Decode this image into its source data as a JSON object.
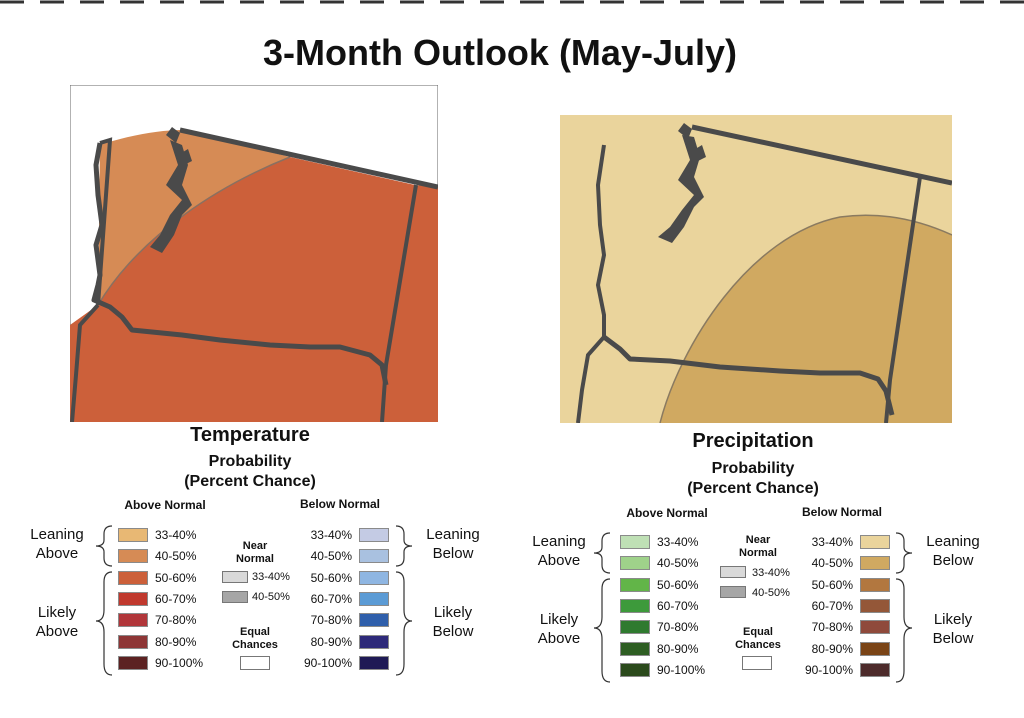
{
  "title": "3-Month Outlook (May-July)",
  "colors": {
    "temp_lean_zone": "#d68b55",
    "temp_likely_zone": "#cc603a",
    "precip_lean_zone": "#ead49c",
    "precip_likely_zone": "#d0a961",
    "boundary": "#555555"
  },
  "temperature": {
    "heading": "Temperature",
    "prob_line1": "Probability",
    "prob_line2": "(Percent Chance)",
    "above_head": "Above Normal",
    "below_head": "Below Normal",
    "near_line1": "Near",
    "near_line2": "Normal",
    "near_items": [
      {
        "label": "33-40%",
        "color": "#d9d9d9"
      },
      {
        "label": "40-50%",
        "color": "#a6a6a6"
      }
    ],
    "equal_line1": "Equal",
    "equal_line2": "Chances",
    "leaning_above_1": "Leaning",
    "leaning_above_2": "Above",
    "likely_above_1": "Likely",
    "likely_above_2": "Above",
    "leaning_below_1": "Leaning",
    "leaning_below_2": "Below",
    "likely_below_1": "Likely",
    "likely_below_2": "Below",
    "above": [
      {
        "label": "33-40%",
        "color": "#e8b874"
      },
      {
        "label": "40-50%",
        "color": "#d68b55"
      },
      {
        "label": "50-60%",
        "color": "#cc603a"
      },
      {
        "label": "60-70%",
        "color": "#c0392e"
      },
      {
        "label": "70-80%",
        "color": "#b1363a"
      },
      {
        "label": "80-90%",
        "color": "#8e3636"
      },
      {
        "label": "90-100%",
        "color": "#5c2222"
      }
    ],
    "below": [
      {
        "label": "33-40%",
        "color": "#c4cbe4"
      },
      {
        "label": "40-50%",
        "color": "#a9c1e0"
      },
      {
        "label": "50-60%",
        "color": "#8fb6e2"
      },
      {
        "label": "60-70%",
        "color": "#5b9bd5"
      },
      {
        "label": "70-80%",
        "color": "#2f5fab"
      },
      {
        "label": "80-90%",
        "color": "#2e2a7a"
      },
      {
        "label": "90-100%",
        "color": "#1f1a55"
      }
    ]
  },
  "precipitation": {
    "heading": "Precipitation",
    "prob_line1": "Probability",
    "prob_line2": "(Percent Chance)",
    "above_head": "Above Normal",
    "below_head": "Below Normal",
    "near_line1": "Near",
    "near_line2": "Normal",
    "near_items": [
      {
        "label": "33-40%",
        "color": "#d9d9d9"
      },
      {
        "label": "40-50%",
        "color": "#a6a6a6"
      }
    ],
    "equal_line1": "Equal",
    "equal_line2": "Chances",
    "leaning_above_1": "Leaning",
    "leaning_above_2": "Above",
    "likely_above_1": "Likely",
    "likely_above_2": "Above",
    "leaning_below_1": "Leaning",
    "leaning_below_2": "Below",
    "likely_below_1": "Likely",
    "likely_below_2": "Below",
    "above": [
      {
        "label": "33-40%",
        "color": "#bfe0b5"
      },
      {
        "label": "40-50%",
        "color": "#9fd28a"
      },
      {
        "label": "50-60%",
        "color": "#62b548"
      },
      {
        "label": "60-70%",
        "color": "#3d9a3b"
      },
      {
        "label": "70-80%",
        "color": "#2f7a2f"
      },
      {
        "label": "80-90%",
        "color": "#2e5e23"
      },
      {
        "label": "90-100%",
        "color": "#2b4a1c"
      }
    ],
    "below": [
      {
        "label": "33-40%",
        "color": "#ead49c"
      },
      {
        "label": "40-50%",
        "color": "#d0a961"
      },
      {
        "label": "50-60%",
        "color": "#b2773f"
      },
      {
        "label": "60-70%",
        "color": "#945738"
      },
      {
        "label": "70-80%",
        "color": "#8f4a3b"
      },
      {
        "label": "80-90%",
        "color": "#7a4416"
      },
      {
        "label": "90-100%",
        "color": "#4d2b2b"
      }
    ]
  }
}
